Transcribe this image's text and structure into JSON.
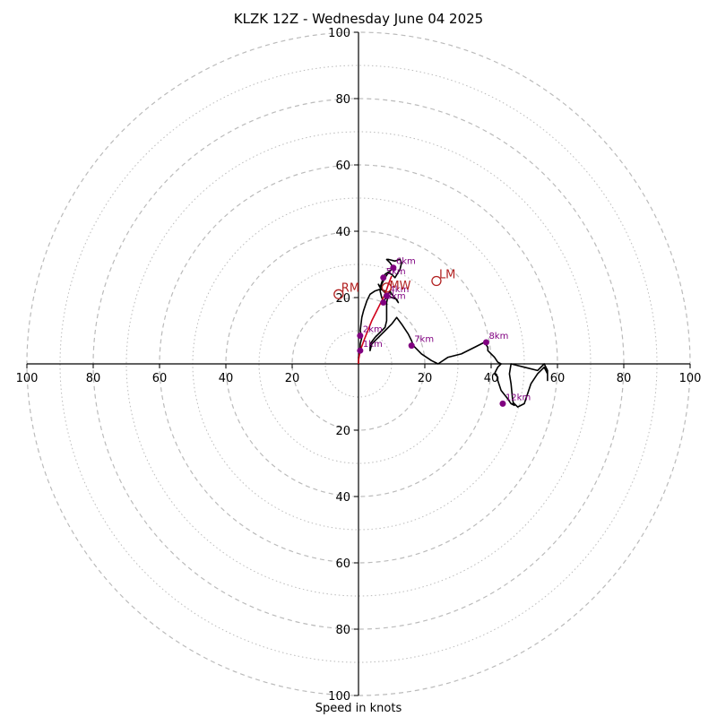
{
  "chart_data": {
    "type": "hodograph",
    "title": "KLZK 12Z - Wednesday June 04 2025",
    "xlabel": "Speed in knots",
    "ticks": [
      20,
      40,
      60,
      80,
      100
    ],
    "tick_labels": [
      "20",
      "40",
      "60",
      "80",
      "100"
    ],
    "rings_major": [
      20,
      40,
      60,
      80,
      100
    ],
    "rings_minor": [
      10,
      30,
      50,
      70,
      90
    ],
    "max_speed": 100,
    "grid": true,
    "colors": {
      "hodograph": "#000000",
      "low_level": "#d0021b",
      "height_markers": "#800080",
      "storm_motion": "#b22222",
      "rings": "#bbbbbb"
    },
    "hodograph": [
      [
        0,
        0
      ],
      [
        0,
        2
      ],
      [
        0.5,
        4
      ],
      [
        0.5,
        6
      ],
      [
        1,
        8
      ],
      [
        0.5,
        10
      ],
      [
        1,
        14
      ],
      [
        1.5,
        16
      ],
      [
        2.5,
        19
      ],
      [
        3.5,
        21
      ],
      [
        5,
        22
      ],
      [
        6.5,
        22.5
      ],
      [
        8,
        22
      ],
      [
        8.5,
        20
      ],
      [
        7.5,
        19
      ],
      [
        7,
        20
      ],
      [
        6.5,
        22
      ],
      [
        7,
        24
      ],
      [
        8,
        26
      ],
      [
        9,
        27.5
      ],
      [
        10,
        27
      ],
      [
        11,
        26
      ],
      [
        12.5,
        28.5
      ],
      [
        13,
        30.5
      ],
      [
        12.5,
        31.5
      ],
      [
        11,
        31
      ],
      [
        9,
        31.5
      ],
      [
        8.5,
        31.5
      ],
      [
        9.5,
        30.5
      ],
      [
        10.5,
        29
      ],
      [
        9.5,
        28
      ],
      [
        8,
        27
      ],
      [
        7.5,
        26
      ],
      [
        7,
        24.5
      ],
      [
        6.5,
        23
      ],
      [
        6,
        24
      ],
      [
        7,
        22.5
      ],
      [
        8.5,
        21
      ],
      [
        10,
        20
      ],
      [
        11.5,
        19.5
      ],
      [
        12,
        18.5
      ],
      [
        11,
        20
      ],
      [
        10,
        21
      ],
      [
        9.5,
        22
      ],
      [
        9,
        21
      ],
      [
        8.5,
        18.5
      ],
      [
        8.5,
        16
      ],
      [
        8.5,
        13
      ],
      [
        8,
        11
      ],
      [
        7,
        10
      ],
      [
        5,
        8
      ],
      [
        3.5,
        6
      ],
      [
        3.5,
        4
      ],
      [
        4,
        6
      ],
      [
        6,
        8
      ],
      [
        8,
        10
      ],
      [
        10,
        12
      ],
      [
        11.5,
        14
      ],
      [
        13,
        12
      ],
      [
        15,
        9
      ],
      [
        16,
        7
      ],
      [
        16.5,
        5.5
      ],
      [
        19,
        3
      ],
      [
        22,
        1
      ],
      [
        24,
        0
      ],
      [
        27,
        2
      ],
      [
        31,
        3
      ],
      [
        35,
        5
      ],
      [
        38,
        6.5
      ],
      [
        39,
        5
      ],
      [
        39,
        4
      ],
      [
        41,
        2
      ],
      [
        42,
        0.5
      ],
      [
        43,
        0
      ],
      [
        42,
        -1
      ],
      [
        41.5,
        -2
      ],
      [
        41,
        -3
      ],
      [
        42,
        -4
      ],
      [
        42,
        -5
      ],
      [
        43,
        -8
      ],
      [
        45,
        -10.5
      ],
      [
        46,
        -12
      ],
      [
        47,
        -12.5
      ],
      [
        46.5,
        -11
      ],
      [
        46,
        -6
      ],
      [
        45.5,
        -3
      ],
      [
        46,
        0
      ],
      [
        50,
        -1
      ],
      [
        54,
        -2
      ],
      [
        56,
        0
      ],
      [
        57,
        -2
      ],
      [
        57,
        -5
      ],
      [
        57,
        -3
      ],
      [
        56,
        -1
      ],
      [
        54,
        -3
      ],
      [
        52,
        -6
      ],
      [
        51,
        -9
      ],
      [
        50,
        -12
      ],
      [
        48,
        -13
      ],
      [
        47,
        -12
      ],
      [
        46,
        -12
      ]
    ],
    "low_level": [
      [
        0,
        0
      ],
      [
        0,
        1
      ],
      [
        0.5,
        4
      ],
      [
        2,
        8
      ],
      [
        4,
        13
      ],
      [
        6,
        17
      ],
      [
        8,
        21
      ],
      [
        9,
        24
      ],
      [
        10,
        26.5
      ]
    ],
    "height_markers": [
      {
        "label": "1km",
        "u": 0.5,
        "v": 4
      },
      {
        "label": "2km",
        "u": 0.5,
        "v": 8.5
      },
      {
        "label": "3km",
        "u": 7.5,
        "v": 18.5
      },
      {
        "label": "4km",
        "u": 8.5,
        "v": 20.5
      },
      {
        "label": "5km",
        "u": 7.5,
        "v": 26
      },
      {
        "label": "6km",
        "u": 10.5,
        "v": 29
      },
      {
        "label": "7km",
        "u": 16,
        "v": 5.5
      },
      {
        "label": "8km",
        "u": 38.5,
        "v": 6.5
      },
      {
        "label": "12km",
        "u": 43.5,
        "v": -12
      }
    ],
    "storm_motion": [
      {
        "label": "RM",
        "u": -6,
        "v": 21,
        "dx": 3,
        "dy": -3
      },
      {
        "label": "LM",
        "u": 23.5,
        "v": 25,
        "dx": 3,
        "dy": -3
      },
      {
        "label": "MW",
        "u": 8.5,
        "v": 23,
        "dx": 3,
        "dy": 2
      }
    ]
  }
}
